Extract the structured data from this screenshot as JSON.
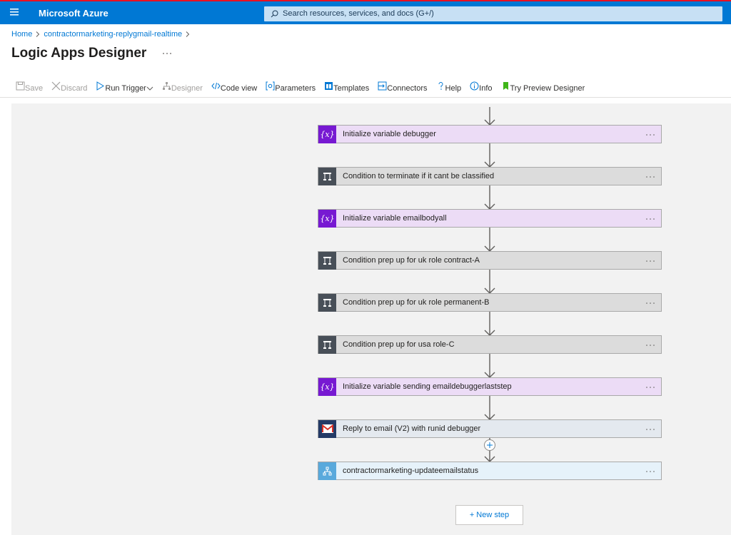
{
  "header": {
    "brand": "Microsoft Azure",
    "search_placeholder": "Search resources, services, and docs (G+/)"
  },
  "breadcrumb": [
    "Home",
    "contractormarketing-replygmail-realtime"
  ],
  "page_title": "Logic Apps Designer",
  "toolbar": [
    {
      "label": "Save",
      "enabled": false
    },
    {
      "label": "Discard",
      "enabled": false
    },
    {
      "label": "Run Trigger",
      "enabled": true
    },
    {
      "label": "Designer",
      "enabled": false
    },
    {
      "label": "Code view",
      "enabled": true
    },
    {
      "label": "Parameters",
      "enabled": true
    },
    {
      "label": "Templates",
      "enabled": true
    },
    {
      "label": "Connectors",
      "enabled": true
    },
    {
      "label": "Help",
      "enabled": true
    },
    {
      "label": "Info",
      "enabled": true
    },
    {
      "label": "Try Preview Designer",
      "enabled": true
    }
  ],
  "icons": {
    "variable": "{x}"
  },
  "steps": [
    {
      "label": "Initialize variable debugger",
      "kind": "variable"
    },
    {
      "label": "Condition to terminate if it cant be classified",
      "kind": "condition"
    },
    {
      "label": "Initialize variable emailbodyall",
      "kind": "variable"
    },
    {
      "label": "Condition prep up for uk role contract-A",
      "kind": "condition"
    },
    {
      "label": "Condition prep up for uk role permanent-B",
      "kind": "condition"
    },
    {
      "label": "Condition prep up for usa role-C",
      "kind": "condition"
    },
    {
      "label": "Initialize variable sending emaildebuggerlaststep",
      "kind": "variable"
    },
    {
      "label": "Reply to email (V2) with runid debugger",
      "kind": "gmail"
    },
    {
      "label": "contractormarketing-updateemailstatus",
      "kind": "workflow"
    }
  ],
  "new_step": "+ New step"
}
